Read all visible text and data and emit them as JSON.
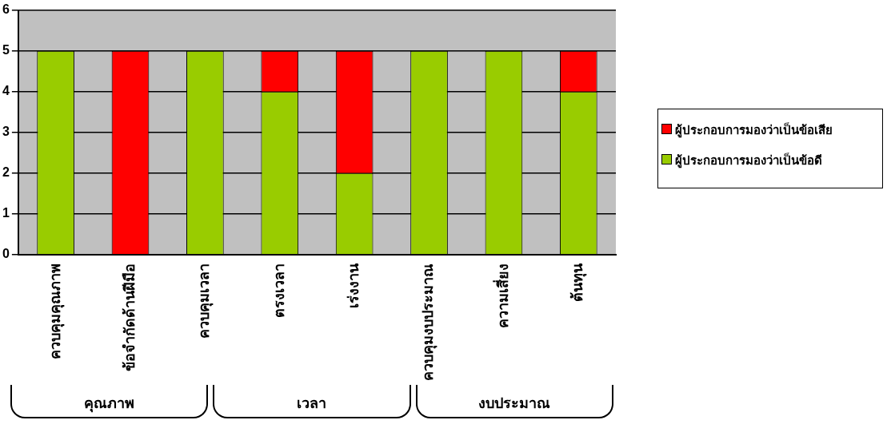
{
  "chart_data": {
    "type": "bar",
    "stacked": true,
    "categories": [
      "ควบคุมคุณภาพ",
      "ข้อจำกัดด้านฝีมือ",
      "ควบคุมเวลา",
      "ตรงเวลา",
      "เร่งงาน",
      "ควบคุมงบประมาณ",
      "ความเสี่ยง",
      "ต้นทุน"
    ],
    "series": [
      {
        "name": "ผู้ประกอบการมองว่าเป็นข้อดี",
        "color": "#99cc00",
        "values": [
          5,
          0,
          5,
          4,
          2,
          5,
          5,
          4
        ]
      },
      {
        "name": "ผู้ประกอบการมองว่าเป็นข้อเสีย",
        "color": "#ff0000",
        "values": [
          0,
          5,
          0,
          1,
          3,
          0,
          0,
          1
        ]
      }
    ],
    "ylim": [
      0,
      6
    ],
    "yticks": [
      0,
      1,
      2,
      3,
      4,
      5,
      6
    ],
    "grid": "y",
    "legend": "right",
    "annotations": [
      "คุณภาพ",
      "เวลา",
      "งบประมาณ"
    ]
  }
}
